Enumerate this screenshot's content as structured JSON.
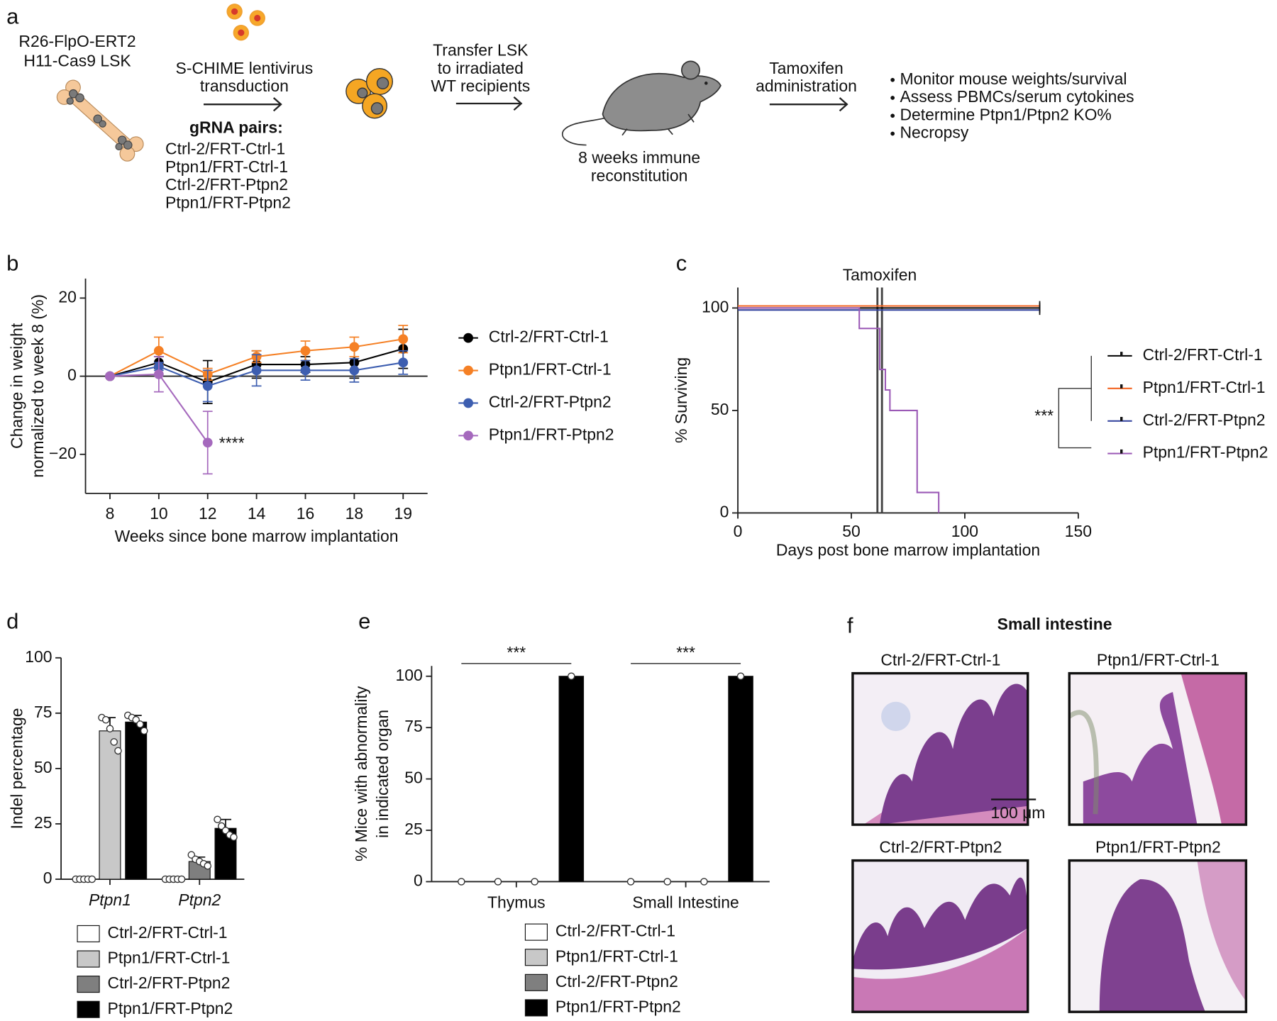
{
  "panel_labels": [
    "a",
    "b",
    "c",
    "d",
    "e",
    "f"
  ],
  "panel_a": {
    "donor": [
      "R26-FlpO-ERT2",
      "H11-Cas9 LSK"
    ],
    "transduction": [
      "S-CHIME lentivirus",
      "transduction"
    ],
    "grna_title": "gRNA pairs:",
    "grna_pairs": [
      "Ctrl-2/FRT-Ctrl-1",
      "Ptpn1/FRT-Ctrl-1",
      "Ctrl-2/FRT-Ptpn2",
      "Ptpn1/FRT-Ptpn2"
    ],
    "transfer": [
      "Transfer LSK",
      "to irradiated",
      "WT recipients"
    ],
    "reconstitution": [
      "8 weeks immune",
      "reconstitution"
    ],
    "tamoxifen": [
      "Tamoxifen",
      "administration"
    ],
    "readouts": [
      "Monitor mouse weights/survival",
      "Assess PBMCs/serum cytokines",
      "Determine Ptpn1/Ptpn2 KO%",
      "Necropsy"
    ]
  },
  "chart_data": [
    {
      "type": "line",
      "xlabel": "Weeks since bone marrow implantation",
      "ylabel": [
        "Change in weight",
        "normalized to week 8 (%)"
      ],
      "categories": [
        "8",
        "10",
        "12",
        "14",
        "16",
        "18",
        "19"
      ],
      "ylim": [
        -30,
        25
      ],
      "yticks": [
        {
          "value": -20,
          "label": "−20"
        },
        0,
        20
      ],
      "zero_line": true,
      "grid": false,
      "legend": "right",
      "series": [
        {
          "name": "Ctrl-2/FRT-Ctrl-1",
          "color": "#000000",
          "values": [
            0,
            3.5,
            -1.5,
            3,
            3,
            3.5,
            7
          ],
          "errors": [
            null,
            1.5,
            5.5,
            3.5,
            2,
            4,
            5
          ]
        },
        {
          "name": "Ptpn1/FRT-Ctrl-1",
          "color": "#f58025",
          "values": [
            0,
            6.5,
            0.5,
            5,
            6.5,
            7.5,
            9.5
          ],
          "errors": [
            null,
            3.5,
            1.5,
            1.5,
            2.5,
            2.5,
            3.5
          ]
        },
        {
          "name": "Ctrl-2/FRT-Ptpn2",
          "color": "#3d5eb0",
          "values": [
            0,
            2.5,
            -2.5,
            1.5,
            1.5,
            1.5,
            3.5
          ],
          "errors": [
            null,
            1,
            4,
            4,
            2.5,
            3,
            3
          ]
        },
        {
          "name": "Ptpn1/FRT-Ptpn2",
          "color": "#a569bd",
          "values": [
            0,
            0.5,
            -17,
            null,
            null,
            null,
            null
          ],
          "errors": [
            null,
            4.5,
            8,
            null,
            null,
            null,
            null
          ],
          "annotation": "****"
        }
      ]
    },
    {
      "type": "survival",
      "xlabel": "Days post bone marrow implantation",
      "ylabel": [
        "% Surviving"
      ],
      "xlim": [
        0,
        150
      ],
      "xticks": [
        0,
        50,
        100,
        150
      ],
      "ylim": [
        0,
        110
      ],
      "yticks": [
        0,
        50,
        100
      ],
      "reference_lines": {
        "label": "Tamoxifen",
        "x": [
          61.5,
          63.5
        ]
      },
      "significance": "***",
      "legend": "right",
      "series": [
        {
          "name": "Ctrl-2/FRT-Ctrl-1",
          "color": "#000000",
          "x": [
            0,
            133
          ],
          "values": [
            100,
            100
          ]
        },
        {
          "name": "Ptpn1/FRT-Ctrl-1",
          "color": "#f26522",
          "x": [
            0,
            133
          ],
          "values": [
            100,
            100
          ]
        },
        {
          "name": "Ctrl-2/FRT-Ptpn2",
          "color": "#2e3f9c",
          "x": [
            0,
            133
          ],
          "values": [
            100,
            100
          ]
        },
        {
          "name": "Ptpn1/FRT-Ptpn2",
          "color": "#9b59b6",
          "x": [
            0,
            53.5,
            62.5,
            65,
            67,
            79,
            88.5
          ],
          "values": [
            100,
            90,
            70,
            60,
            50,
            10,
            0
          ]
        }
      ]
    },
    {
      "type": "bar",
      "ylabel": [
        "Indel percentage"
      ],
      "categories": [
        "Ptpn1",
        "Ptpn2"
      ],
      "ylim": [
        0,
        100
      ],
      "yticks": [
        0,
        25,
        50,
        75,
        100
      ],
      "legend": "bottom",
      "series": [
        {
          "name": "Ctrl-2/FRT-Ctrl-1",
          "color": "#ffffff",
          "values": [
            0,
            0
          ],
          "errors": [
            null,
            null
          ],
          "points": [
            [
              0,
              0,
              0,
              0,
              0
            ],
            [
              0,
              0,
              0,
              0,
              0
            ]
          ]
        },
        {
          "name": "Ptpn1/FRT-Ctrl-1",
          "color": "#c8c8c8",
          "values": [
            67,
            null
          ],
          "errors": [
            6,
            null
          ],
          "points": [
            [
              73,
              72,
              68,
              62,
              58
            ],
            []
          ]
        },
        {
          "name": "Ctrl-2/FRT-Ptpn2",
          "color": "#7f7f7f",
          "values": [
            null,
            8
          ],
          "errors": [
            null,
            2
          ],
          "points": [
            [],
            [
              11,
              9,
              8,
              7,
              6
            ]
          ]
        },
        {
          "name": "Ptpn1/FRT-Ptpn2",
          "color": "#000000",
          "values": [
            71,
            23
          ],
          "errors": [
            3,
            4
          ],
          "points": [
            [
              74,
              73,
              72,
              70,
              67
            ],
            [
              27,
              24,
              22,
              20,
              19
            ]
          ]
        }
      ]
    },
    {
      "type": "bar",
      "ylabel": [
        "% Mice with abnormality",
        "in indicated organ"
      ],
      "categories": [
        "Thymus",
        "Small Intestine"
      ],
      "ylim": [
        0,
        105
      ],
      "yticks": [
        0,
        25,
        50,
        75,
        100
      ],
      "legend": "bottom",
      "significance": [
        "***",
        "***"
      ],
      "series": [
        {
          "name": "Ctrl-2/FRT-Ctrl-1",
          "color": "#ffffff",
          "values": [
            0,
            0
          ],
          "points": [
            [
              0
            ],
            [
              0
            ]
          ]
        },
        {
          "name": "Ptpn1/FRT-Ctrl-1",
          "color": "#c8c8c8",
          "values": [
            0,
            0
          ],
          "points": [
            [
              0
            ],
            [
              0
            ]
          ]
        },
        {
          "name": "Ctrl-2/FRT-Ptpn2",
          "color": "#7f7f7f",
          "values": [
            0,
            0
          ],
          "points": [
            [
              0
            ],
            [
              0
            ]
          ]
        },
        {
          "name": "Ptpn1/FRT-Ptpn2",
          "color": "#000000",
          "values": [
            100,
            100
          ],
          "points": [
            [
              100
            ],
            [
              100
            ]
          ]
        }
      ]
    }
  ],
  "panel_f": {
    "title": "Small intestine",
    "images": [
      "Ctrl-2/FRT-Ctrl-1",
      "Ptpn1/FRT-Ctrl-1",
      "Ctrl-2/FRT-Ptpn2",
      "Ptpn1/FRT-Ptpn2"
    ],
    "scale_bar": "100 μm"
  }
}
